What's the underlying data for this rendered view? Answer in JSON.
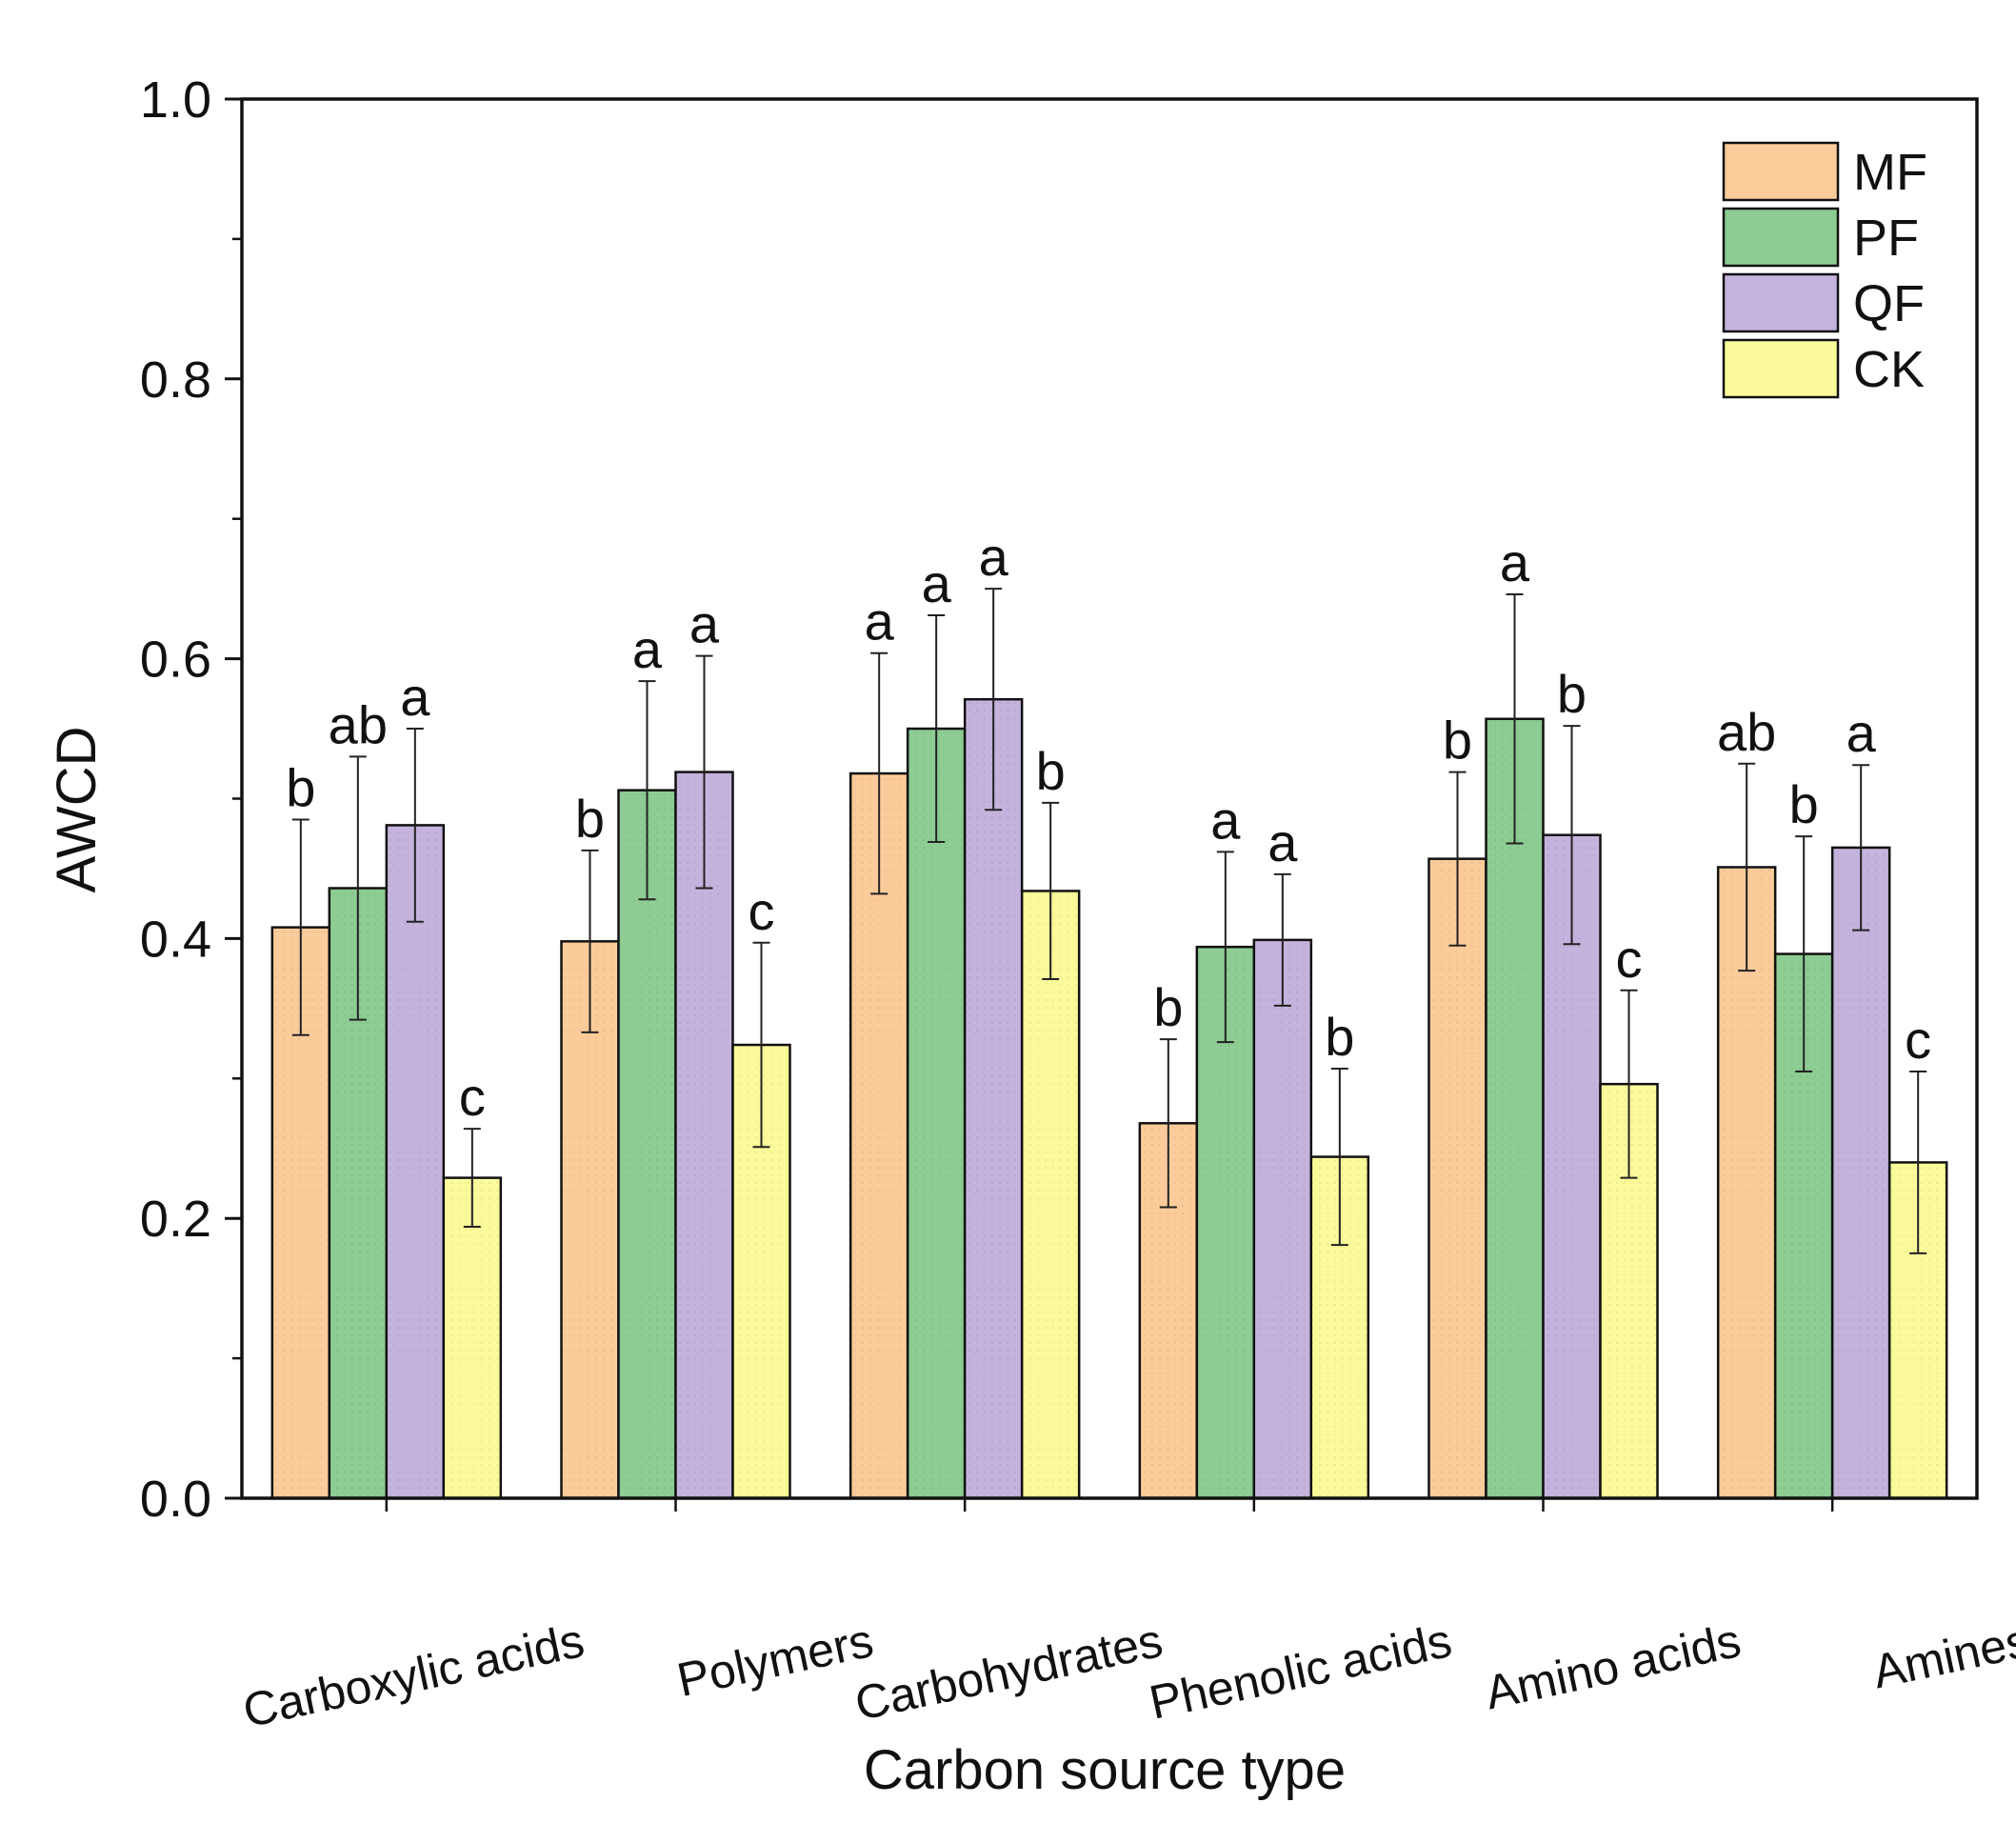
{
  "chart_data": {
    "type": "bar",
    "title": "",
    "xlabel": "Carbon source type",
    "ylabel": "AWCD",
    "ylim": [
      0,
      1.0
    ],
    "yticks": [
      "0.0",
      "0.2",
      "0.4",
      "0.6",
      "0.8",
      "1.0"
    ],
    "legend_position": "top-right",
    "categories": [
      "Carboxylic acids",
      "Polymers",
      "Carbohydrates",
      "Phenolic acids",
      "Amino acids",
      "Amines"
    ],
    "series": [
      {
        "name": "MF",
        "color": "#fccb9a",
        "values": [
          0.408,
          0.398,
          0.518,
          0.268,
          0.457,
          0.451
        ],
        "errors": [
          0.077,
          0.065,
          0.086,
          0.06,
          0.062,
          0.074
        ],
        "letters": [
          "b",
          "b",
          "a",
          "b",
          "b",
          "ab"
        ]
      },
      {
        "name": "PF",
        "color": "#8dcc92",
        "values": [
          0.436,
          0.506,
          0.55,
          0.394,
          0.557,
          0.389
        ],
        "errors": [
          0.094,
          0.078,
          0.081,
          0.068,
          0.089,
          0.084
        ],
        "letters": [
          "ab",
          "a",
          "a",
          "a",
          "a",
          "b"
        ]
      },
      {
        "name": "QF",
        "color": "#c4b3dd",
        "values": [
          0.481,
          0.519,
          0.571,
          0.399,
          0.474,
          0.465
        ],
        "errors": [
          0.069,
          0.083,
          0.079,
          0.047,
          0.078,
          0.059
        ],
        "letters": [
          "a",
          "a",
          "a",
          "a",
          "b",
          "a"
        ]
      },
      {
        "name": "CK",
        "color": "#fbfa9a",
        "values": [
          0.229,
          0.324,
          0.434,
          0.244,
          0.296,
          0.24
        ],
        "errors": [
          0.035,
          0.073,
          0.063,
          0.063,
          0.067,
          0.065
        ],
        "letters": [
          "c",
          "c",
          "b",
          "b",
          "c",
          "c"
        ]
      }
    ]
  }
}
